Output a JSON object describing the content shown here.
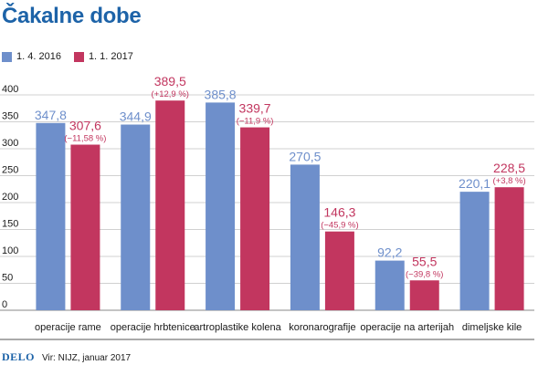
{
  "title": "Čakalne dobe",
  "legend": [
    {
      "label": "1. 4. 2016",
      "color": "#6e8fcb"
    },
    {
      "label": "1. 1. 2017",
      "color": "#c2365f"
    }
  ],
  "footer": {
    "logo": "DELO",
    "source": "Vir: NIJZ, januar 2017"
  },
  "chart_data": {
    "type": "bar",
    "categories": [
      "operacije rame",
      "operacije hrbtenice",
      "artroplastike kolena",
      "koronarografije",
      "operacije na arterijah",
      "dimeljske kile"
    ],
    "series": [
      {
        "name": "1. 4. 2016",
        "color": "#6e8fcb",
        "values": [
          347.8,
          344.9,
          385.8,
          270.5,
          92.2,
          220.1
        ],
        "labels": [
          "347,8",
          "344,9",
          "385,8",
          "270,5",
          "92,2",
          "220,1"
        ]
      },
      {
        "name": "1. 1. 2017",
        "color": "#c2365f",
        "values": [
          307.6,
          389.5,
          339.7,
          146.3,
          55.5,
          228.5
        ],
        "labels": [
          "307,6",
          "389,5",
          "339,7",
          "146,3",
          "55,5",
          "228,5"
        ],
        "changes": [
          "(−11,58 %)",
          "(+12,9 %)",
          "(−11,9 %)",
          "(−45,9 %)",
          "(−39,8 %)",
          "(+3,8 %)"
        ]
      }
    ],
    "ylim": [
      0,
      400
    ],
    "yticks": [
      0,
      50,
      100,
      150,
      200,
      250,
      300,
      350,
      400
    ],
    "grid": true
  }
}
